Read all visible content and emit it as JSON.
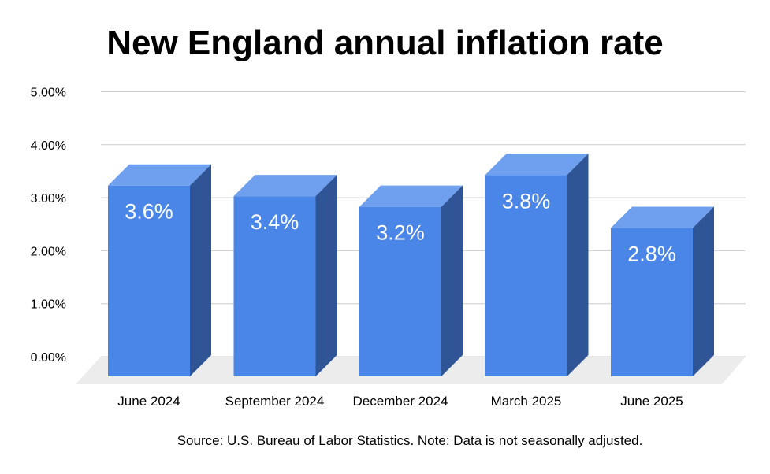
{
  "chart_data": {
    "type": "bar",
    "title": "New England annual inflation rate",
    "categories": [
      "June 2024",
      "September 2024",
      "December 2024",
      "March 2025",
      "June 2025"
    ],
    "values": [
      3.6,
      3.4,
      3.2,
      3.8,
      2.8
    ],
    "data_labels": [
      "3.6%",
      "3.4%",
      "3.2%",
      "3.8%",
      "2.8%"
    ],
    "y_ticks": [
      "0.00%",
      "1.00%",
      "2.00%",
      "3.00%",
      "4.00%",
      "5.00%"
    ],
    "ylim": [
      0,
      5
    ],
    "grid": true,
    "style": "3d-bar",
    "xlabel": "",
    "ylabel": "",
    "colors": {
      "bar_front": "#4a86e8",
      "bar_top": "#6fa0ef",
      "bar_side": "#2f5596",
      "floor": "#ececec",
      "gridline": "#cccccc"
    }
  },
  "footer": {
    "source": "Source: U.S. Bureau of Labor Statistics. Note: Data is not seasonally adjusted."
  }
}
